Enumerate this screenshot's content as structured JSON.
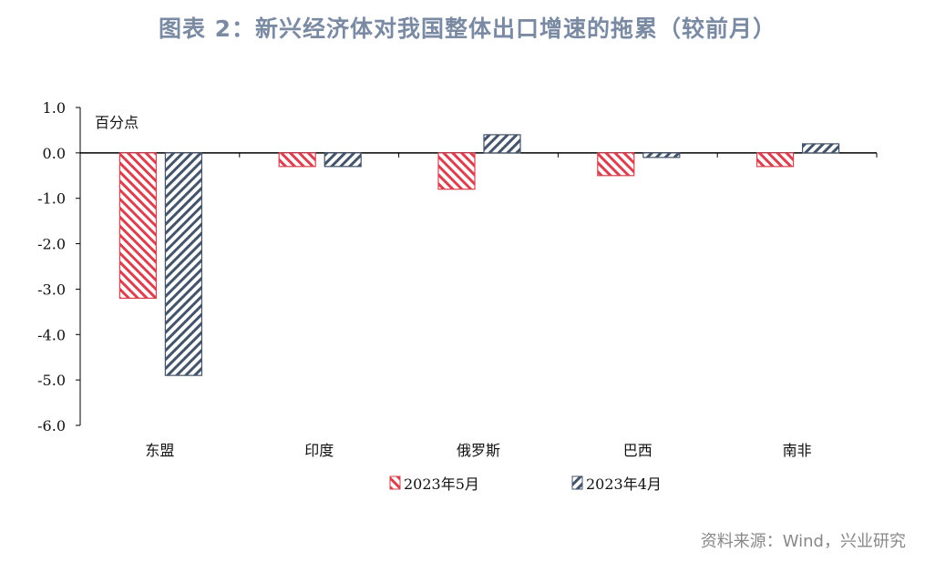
{
  "title": "图表 2：新兴经济体对我国整体出口增速的拖累（较前月）",
  "source": "资料来源：Wind，兴业研究",
  "chart_data": {
    "type": "bar",
    "title": "图表 2：新兴经济体对我国整体出口增速的拖累（较前月）",
    "ylabel": "百分点",
    "xlabel": "",
    "categories": [
      "东盟",
      "印度",
      "俄罗斯",
      "巴西",
      "南非"
    ],
    "series": [
      {
        "name": "2023年5月",
        "values": [
          -3.2,
          -0.3,
          -0.8,
          -0.5,
          -0.3
        ],
        "color": "#d9414f",
        "pattern": "back-diagonal-hatch"
      },
      {
        "name": "2023年4月",
        "values": [
          -4.9,
          -0.3,
          0.4,
          -0.1,
          0.2
        ],
        "color": "#44546a",
        "pattern": "diagonal-hatch"
      }
    ],
    "ylim": [
      -6.0,
      1.0
    ],
    "yticks": [
      "1.0",
      "0.0",
      "-1.0",
      "-2.0",
      "-3.0",
      "-4.0",
      "-5.0",
      "-6.0"
    ],
    "grid": false,
    "legend": "bottom"
  }
}
